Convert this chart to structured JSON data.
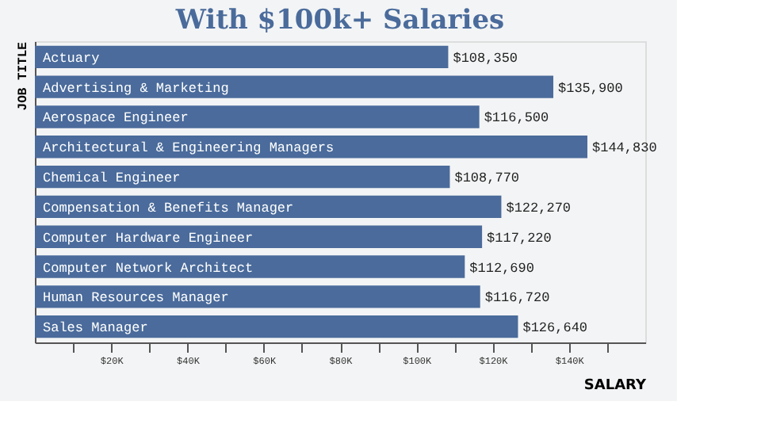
{
  "chart_data": {
    "type": "bar",
    "orientation": "horizontal",
    "title": "With $100k+ Salaries",
    "xlabel": "SALARY",
    "ylabel": "JOB TITLE",
    "categories": [
      "Actuary",
      "Advertising & Marketing",
      "Aerospace Engineer",
      "Architectural & Engineering Managers",
      "Chemical Engineer",
      "Compensation & Benefits Manager",
      "Computer Hardware Engineer",
      "Computer Network Architect",
      "Human Resources Manager",
      "Sales Manager"
    ],
    "values": [
      108350,
      135900,
      116500,
      144830,
      108770,
      122270,
      117220,
      112690,
      116720,
      126640
    ],
    "value_labels": [
      "$108,350",
      "$135,900",
      "$116,500",
      "$144,830",
      "$108,770",
      "$122,270",
      "$117,220",
      "$112,690",
      "$116,720",
      "$126,640"
    ],
    "color": "#4a6b9b",
    "grid": false,
    "xlim": [
      0,
      160000
    ],
    "xticks": [
      {
        "value": 10000,
        "label": null
      },
      {
        "value": 20000,
        "label": "$20K"
      },
      {
        "value": 30000,
        "label": null
      },
      {
        "value": 40000,
        "label": "$40K"
      },
      {
        "value": 50000,
        "label": null
      },
      {
        "value": 60000,
        "label": "$60K"
      },
      {
        "value": 70000,
        "label": null
      },
      {
        "value": 80000,
        "label": "$80K"
      },
      {
        "value": 90000,
        "label": null
      },
      {
        "value": 100000,
        "label": "$100K"
      },
      {
        "value": 110000,
        "label": null
      },
      {
        "value": 120000,
        "label": "$120K"
      },
      {
        "value": 130000,
        "label": null
      },
      {
        "value": 140000,
        "label": "$140K"
      },
      {
        "value": 150000,
        "label": null
      }
    ]
  }
}
